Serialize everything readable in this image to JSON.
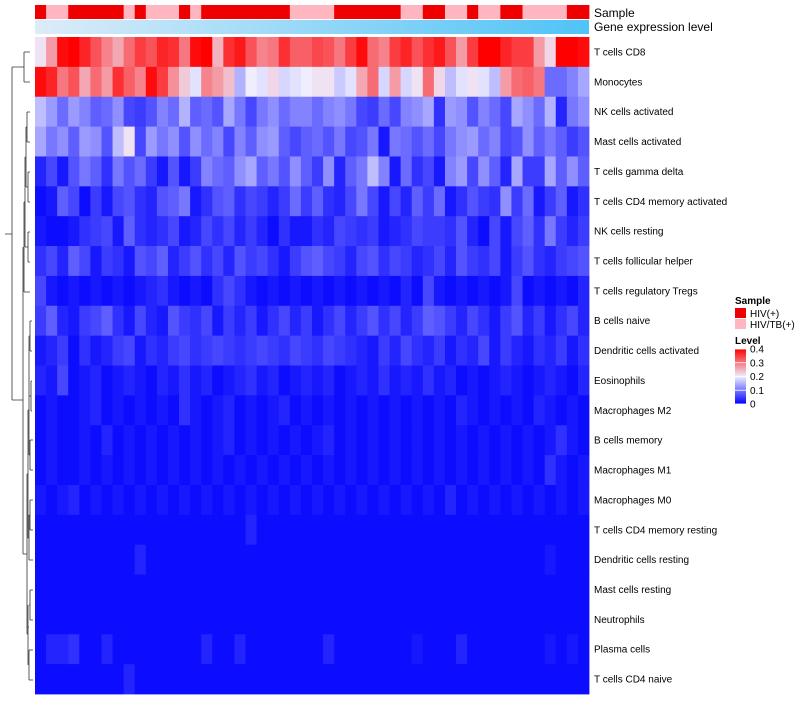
{
  "chart_data": {
    "type": "heatmap",
    "title": "",
    "annotation_tracks": [
      "Sample",
      "Gene expression level"
    ],
    "rows": [
      "T cells CD8",
      "Monocytes",
      "NK cells activated",
      "Mast cells activated",
      "T cells gamma delta",
      "T cells CD4 memory activated",
      "NK cells resting",
      "T cells follicular helper",
      "T cells regulatory  Tregs",
      "B cells naive",
      "Dendritic cells activated",
      "Eosinophils",
      "Macrophages M2",
      "B cells memory",
      "Macrophages M1",
      "Macrophages M0",
      "T cells CD4 memory resting",
      "Dendritic cells resting",
      "Mast cells resting",
      "Neutrophils",
      "Plasma cells",
      "T cells CD4 naive"
    ],
    "columns_count": 50,
    "sample_annotation": [
      "HIV(+)",
      "HIV/TB(+)",
      "HIV/TB(+)",
      "HIV(+)",
      "HIV(+)",
      "HIV(+)",
      "HIV(+)",
      "HIV(+)",
      "HIV/TB(+)",
      "HIV(+)",
      "HIV/TB(+)",
      "HIV/TB(+)",
      "HIV/TB(+)",
      "HIV(+)",
      "HIV/TB(+)",
      "HIV(+)",
      "HIV(+)",
      "HIV(+)",
      "HIV(+)",
      "HIV(+)",
      "HIV(+)",
      "HIV(+)",
      "HIV(+)",
      "HIV/TB(+)",
      "HIV/TB(+)",
      "HIV/TB(+)",
      "HIV/TB(+)",
      "HIV(+)",
      "HIV(+)",
      "HIV(+)",
      "HIV(+)",
      "HIV(+)",
      "HIV(+)",
      "HIV/TB(+)",
      "HIV/TB(+)",
      "HIV(+)",
      "HIV(+)",
      "HIV/TB(+)",
      "HIV/TB(+)",
      "HIV(+)",
      "HIV/TB(+)",
      "HIV/TB(+)",
      "HIV(+)",
      "HIV(+)",
      "HIV/TB(+)",
      "HIV/TB(+)",
      "HIV/TB(+)",
      "HIV/TB(+)",
      "HIV(+)",
      "HIV(+)"
    ],
    "legend": {
      "sample_title": "Sample",
      "sample_entries": [
        {
          "label": "HIV(+)",
          "color": "#ee0000"
        },
        {
          "label": "HIV/TB(+)",
          "color": "#ffb6c1"
        }
      ],
      "level_title": "Level",
      "level_ticks": [
        "0.4",
        "0.3",
        "0.2",
        "0.1",
        "0"
      ],
      "level_min": 0,
      "level_max": 0.4
    },
    "gradient": {
      "gene_expression_from": "#dcecf8",
      "gene_expression_to": "#4fc3f7",
      "level_low": "#0000ff",
      "level_mid": "#eeeeff",
      "level_high": "#ff0000"
    },
    "values": {
      "T cells CD8": [
        0.21,
        0.27,
        0.39,
        0.41,
        0.37,
        0.33,
        0.29,
        0.26,
        0.31,
        0.35,
        0.33,
        0.37,
        0.36,
        0.3,
        0.39,
        0.41,
        0.25,
        0.36,
        0.38,
        0.33,
        0.29,
        0.3,
        0.36,
        0.32,
        0.32,
        0.34,
        0.33,
        0.3,
        0.35,
        0.39,
        0.31,
        0.29,
        0.35,
        0.37,
        0.33,
        0.36,
        0.38,
        0.33,
        0.27,
        0.35,
        0.4,
        0.4,
        0.37,
        0.35,
        0.35,
        0.27,
        0.22,
        0.4,
        0.42,
        0.39
      ],
      "Monocytes": [
        0.39,
        0.37,
        0.3,
        0.33,
        0.26,
        0.31,
        0.27,
        0.36,
        0.32,
        0.29,
        0.39,
        0.35,
        0.28,
        0.23,
        0.19,
        0.29,
        0.27,
        0.24,
        0.15,
        0.2,
        0.19,
        0.22,
        0.18,
        0.19,
        0.2,
        0.21,
        0.21,
        0.17,
        0.19,
        0.26,
        0.31,
        0.18,
        0.27,
        0.18,
        0.21,
        0.31,
        0.22,
        0.16,
        0.19,
        0.21,
        0.19,
        0.16,
        0.27,
        0.31,
        0.32,
        0.3,
        0.09,
        0.09,
        0.11,
        0.14
      ],
      "NK cells activated": [
        0.16,
        0.13,
        0.09,
        0.13,
        0.11,
        0.08,
        0.09,
        0.12,
        0.06,
        0.05,
        0.07,
        0.11,
        0.09,
        0.15,
        0.08,
        0.09,
        0.07,
        0.14,
        0.1,
        0.06,
        0.1,
        0.12,
        0.09,
        0.11,
        0.11,
        0.09,
        0.11,
        0.12,
        0.1,
        0.06,
        0.05,
        0.09,
        0.06,
        0.11,
        0.12,
        0.14,
        0.04,
        0.13,
        0.12,
        0.07,
        0.11,
        0.09,
        0.06,
        0.14,
        0.12,
        0.09,
        0.15,
        0.03,
        0.1,
        0.12
      ],
      "Mast cells activated": [
        0.14,
        0.1,
        0.12,
        0.08,
        0.13,
        0.12,
        0.07,
        0.16,
        0.21,
        0.06,
        0.13,
        0.1,
        0.12,
        0.07,
        0.12,
        0.09,
        0.11,
        0.06,
        0.11,
        0.08,
        0.12,
        0.13,
        0.08,
        0.06,
        0.08,
        0.09,
        0.07,
        0.1,
        0.06,
        0.07,
        0.1,
        0.02,
        0.1,
        0.09,
        0.07,
        0.09,
        0.06,
        0.1,
        0.12,
        0.13,
        0.09,
        0.11,
        0.06,
        0.07,
        0.12,
        0.08,
        0.1,
        0.08,
        0.05,
        0.07
      ],
      "T cells gamma delta": [
        0.03,
        0.06,
        0.02,
        0.07,
        0.1,
        0.08,
        0.04,
        0.1,
        0.07,
        0.09,
        0.05,
        0.02,
        0.07,
        0.02,
        0.05,
        0.11,
        0.09,
        0.08,
        0.12,
        0.14,
        0.08,
        0.1,
        0.07,
        0.12,
        0.08,
        0.05,
        0.12,
        0.03,
        0.08,
        0.1,
        0.16,
        0.11,
        0.02,
        0.09,
        0.04,
        0.06,
        0.02,
        0.11,
        0.13,
        0.06,
        0.12,
        0.08,
        0.03,
        0.14,
        0.05,
        0.05,
        0.14,
        0.08,
        0.12,
        0.08
      ],
      "T cells CD4 memory activated": [
        0.01,
        0.02,
        0.08,
        0.06,
        0.01,
        0.05,
        0.02,
        0.06,
        0.07,
        0.04,
        0.03,
        0.07,
        0.08,
        0.1,
        0.02,
        0.04,
        0.07,
        0.08,
        0.04,
        0.06,
        0.05,
        0.03,
        0.05,
        0.09,
        0.05,
        0.08,
        0.04,
        0.03,
        0.06,
        0.1,
        0.06,
        0.02,
        0.06,
        0.03,
        0.08,
        0.05,
        0.09,
        0.02,
        0.04,
        0.07,
        0.05,
        0.04,
        0.12,
        0.05,
        0.09,
        0.02,
        0.05,
        0.08,
        0.02,
        0.04
      ],
      "NK cells resting": [
        0.02,
        0.01,
        0.01,
        0.02,
        0.04,
        0.05,
        0.06,
        0.02,
        0.08,
        0.04,
        0.03,
        0.04,
        0.06,
        0.02,
        0.03,
        0.06,
        0.04,
        0.06,
        0.03,
        0.05,
        0.03,
        0.01,
        0.04,
        0.02,
        0.02,
        0.04,
        0.03,
        0.06,
        0.05,
        0.04,
        0.05,
        0.02,
        0.03,
        0.04,
        0.06,
        0.05,
        0.05,
        0.04,
        0.07,
        0.03,
        0.01,
        0.06,
        0.02,
        0.06,
        0.08,
        0.04,
        0.1,
        0.05,
        0.03,
        0.05
      ],
      "T cells follicular helper": [
        0.04,
        0.06,
        0.03,
        0.08,
        0.06,
        0.02,
        0.05,
        0.04,
        0.02,
        0.07,
        0.06,
        0.08,
        0.03,
        0.05,
        0.07,
        0.04,
        0.06,
        0.03,
        0.07,
        0.05,
        0.06,
        0.04,
        0.02,
        0.05,
        0.07,
        0.08,
        0.06,
        0.05,
        0.03,
        0.06,
        0.07,
        0.04,
        0.06,
        0.05,
        0.03,
        0.04,
        0.06,
        0.03,
        0.07,
        0.05,
        0.04,
        0.06,
        0.02,
        0.05,
        0.07,
        0.04,
        0.03,
        0.05,
        0.06,
        0.07
      ],
      "T cells regulatory  Tregs": [
        0.06,
        0.02,
        0.01,
        0.02,
        0.01,
        0.02,
        0.01,
        0.02,
        0.01,
        0.02,
        0.03,
        0.04,
        0.02,
        0.01,
        0.02,
        0.01,
        0.04,
        0.06,
        0.04,
        0.02,
        0.01,
        0.02,
        0.01,
        0.02,
        0.01,
        0.02,
        0.01,
        0.02,
        0.01,
        0.02,
        0.01,
        0.02,
        0.01,
        0.03,
        0.01,
        0.06,
        0.02,
        0.01,
        0.02,
        0.01,
        0.02,
        0.01,
        0.02,
        0.06,
        0.01,
        0.02,
        0.01,
        0.02,
        0.01,
        0.03
      ],
      "B cells naive": [
        0.05,
        0.08,
        0.03,
        0.02,
        0.05,
        0.06,
        0.08,
        0.04,
        0.02,
        0.06,
        0.03,
        0.02,
        0.07,
        0.05,
        0.04,
        0.06,
        0.02,
        0.05,
        0.03,
        0.05,
        0.02,
        0.04,
        0.06,
        0.03,
        0.05,
        0.02,
        0.04,
        0.06,
        0.03,
        0.05,
        0.07,
        0.04,
        0.06,
        0.03,
        0.05,
        0.08,
        0.07,
        0.05,
        0.03,
        0.06,
        0.04,
        0.02,
        0.05,
        0.07,
        0.03,
        0.05,
        0.02,
        0.04,
        0.06,
        0.03
      ],
      "Dendritic cells activated": [
        0.02,
        0.03,
        0.05,
        0.01,
        0.04,
        0.02,
        0.03,
        0.05,
        0.06,
        0.02,
        0.04,
        0.03,
        0.05,
        0.06,
        0.04,
        0.05,
        0.06,
        0.05,
        0.04,
        0.05,
        0.06,
        0.05,
        0.04,
        0.06,
        0.05,
        0.04,
        0.06,
        0.05,
        0.04,
        0.03,
        0.02,
        0.05,
        0.03,
        0.06,
        0.04,
        0.03,
        0.05,
        0.02,
        0.04,
        0.03,
        0.06,
        0.02,
        0.05,
        0.03,
        0.02,
        0.04,
        0.03,
        0.05,
        0.02,
        0.04
      ],
      "Eosinophils": [
        0.03,
        0.02,
        0.06,
        0.01,
        0.02,
        0.03,
        0.01,
        0.02,
        0.03,
        0.02,
        0.01,
        0.03,
        0.02,
        0.04,
        0.02,
        0.03,
        0.01,
        0.02,
        0.03,
        0.04,
        0.02,
        0.03,
        0.01,
        0.02,
        0.03,
        0.02,
        0.03,
        0.01,
        0.02,
        0.03,
        0.02,
        0.04,
        0.02,
        0.03,
        0.02,
        0.04,
        0.02,
        0.03,
        0.01,
        0.02,
        0.01,
        0.02,
        0.03,
        0.02,
        0.01,
        0.02,
        0.03,
        0.02,
        0.01,
        0.03
      ],
      "Macrophages M2": [
        0.01,
        0.02,
        0.01,
        0.01,
        0.02,
        0.03,
        0.01,
        0.02,
        0.01,
        0.02,
        0.01,
        0.02,
        0.01,
        0.04,
        0.02,
        0.01,
        0.02,
        0.03,
        0.01,
        0.02,
        0.01,
        0.02,
        0.03,
        0.01,
        0.02,
        0.01,
        0.02,
        0.01,
        0.02,
        0.01,
        0.02,
        0.01,
        0.02,
        0.01,
        0.02,
        0.01,
        0.02,
        0.01,
        0.03,
        0.02,
        0.01,
        0.02,
        0.01,
        0.02,
        0.01,
        0.03,
        0.02,
        0.01,
        0.02,
        0.01
      ],
      "B cells memory": [
        0.01,
        0.02,
        0.01,
        0.01,
        0.02,
        0.01,
        0.03,
        0.01,
        0.02,
        0.01,
        0.02,
        0.01,
        0.02,
        0.01,
        0.02,
        0.01,
        0.02,
        0.03,
        0.01,
        0.02,
        0.01,
        0.02,
        0.01,
        0.02,
        0.01,
        0.02,
        0.03,
        0.01,
        0.02,
        0.01,
        0.02,
        0.01,
        0.02,
        0.01,
        0.02,
        0.01,
        0.02,
        0.01,
        0.02,
        0.01,
        0.02,
        0.01,
        0.02,
        0.01,
        0.02,
        0.01,
        0.02,
        0.04,
        0.02,
        0.01
      ],
      "Macrophages M1": [
        0.01,
        0.02,
        0.01,
        0.01,
        0.02,
        0.01,
        0.02,
        0.01,
        0.02,
        0.01,
        0.02,
        0.01,
        0.02,
        0.01,
        0.02,
        0.01,
        0.02,
        0.01,
        0.02,
        0.01,
        0.02,
        0.01,
        0.02,
        0.01,
        0.02,
        0.01,
        0.02,
        0.01,
        0.02,
        0.01,
        0.02,
        0.01,
        0.02,
        0.01,
        0.02,
        0.01,
        0.02,
        0.01,
        0.02,
        0.01,
        0.02,
        0.01,
        0.02,
        0.01,
        0.02,
        0.01,
        0.04,
        0.02,
        0.01,
        0.02
      ],
      "Macrophages M0": [
        0.02,
        0.01,
        0.02,
        0.03,
        0.01,
        0.02,
        0.01,
        0.02,
        0.01,
        0.02,
        0.01,
        0.02,
        0.01,
        0.02,
        0.01,
        0.02,
        0.01,
        0.02,
        0.01,
        0.02,
        0.01,
        0.02,
        0.01,
        0.02,
        0.01,
        0.02,
        0.01,
        0.02,
        0.01,
        0.02,
        0.01,
        0.02,
        0.01,
        0.02,
        0.01,
        0.02,
        0.01,
        0.03,
        0.01,
        0.02,
        0.01,
        0.02,
        0.01,
        0.02,
        0.01,
        0.02,
        0.01,
        0.02,
        0.01,
        0.02
      ],
      "T cells CD4 memory resting": [
        0.01,
        0.01,
        0.01,
        0.01,
        0.01,
        0.01,
        0.01,
        0.01,
        0.01,
        0.01,
        0.01,
        0.01,
        0.01,
        0.01,
        0.01,
        0.01,
        0.01,
        0.01,
        0.01,
        0.03,
        0.01,
        0.01,
        0.01,
        0.01,
        0.01,
        0.01,
        0.01,
        0.01,
        0.01,
        0.01,
        0.01,
        0.01,
        0.01,
        0.01,
        0.01,
        0.01,
        0.01,
        0.01,
        0.01,
        0.01,
        0.01,
        0.01,
        0.01,
        0.01,
        0.01,
        0.01,
        0.01,
        0.01,
        0.01,
        0.01
      ],
      "Dendritic cells resting": [
        0.01,
        0.01,
        0.01,
        0.01,
        0.01,
        0.01,
        0.01,
        0.01,
        0.01,
        0.03,
        0.01,
        0.01,
        0.01,
        0.01,
        0.01,
        0.01,
        0.01,
        0.01,
        0.01,
        0.01,
        0.01,
        0.01,
        0.01,
        0.01,
        0.01,
        0.01,
        0.01,
        0.01,
        0.01,
        0.01,
        0.01,
        0.01,
        0.01,
        0.01,
        0.01,
        0.01,
        0.01,
        0.01,
        0.01,
        0.01,
        0.01,
        0.01,
        0.01,
        0.01,
        0.01,
        0.01,
        0.02,
        0.01,
        0.01,
        0.01
      ],
      "Mast cells resting": [
        0.01,
        0.01,
        0.01,
        0.01,
        0.01,
        0.01,
        0.01,
        0.01,
        0.01,
        0.01,
        0.01,
        0.01,
        0.01,
        0.01,
        0.01,
        0.01,
        0.01,
        0.01,
        0.01,
        0.01,
        0.01,
        0.01,
        0.01,
        0.01,
        0.01,
        0.01,
        0.01,
        0.01,
        0.01,
        0.01,
        0.01,
        0.01,
        0.01,
        0.01,
        0.01,
        0.01,
        0.01,
        0.01,
        0.01,
        0.01,
        0.01,
        0.01,
        0.01,
        0.01,
        0.01,
        0.01,
        0.01,
        0.01,
        0.01,
        0.01
      ],
      "Neutrophils": [
        0.01,
        0.01,
        0.01,
        0.01,
        0.01,
        0.01,
        0.01,
        0.01,
        0.01,
        0.01,
        0.01,
        0.01,
        0.01,
        0.01,
        0.01,
        0.01,
        0.01,
        0.01,
        0.01,
        0.01,
        0.01,
        0.01,
        0.01,
        0.01,
        0.01,
        0.01,
        0.01,
        0.01,
        0.01,
        0.01,
        0.01,
        0.01,
        0.01,
        0.01,
        0.01,
        0.01,
        0.01,
        0.01,
        0.01,
        0.01,
        0.01,
        0.01,
        0.01,
        0.01,
        0.01,
        0.01,
        0.01,
        0.01,
        0.01,
        0.01
      ],
      "Plasma cells": [
        0.01,
        0.03,
        0.03,
        0.04,
        0.01,
        0.01,
        0.03,
        0.01,
        0.01,
        0.01,
        0.01,
        0.01,
        0.01,
        0.01,
        0.01,
        0.03,
        0.01,
        0.01,
        0.03,
        0.01,
        0.01,
        0.01,
        0.01,
        0.01,
        0.01,
        0.01,
        0.03,
        0.01,
        0.01,
        0.01,
        0.01,
        0.01,
        0.01,
        0.01,
        0.02,
        0.01,
        0.01,
        0.01,
        0.03,
        0.01,
        0.01,
        0.01,
        0.01,
        0.01,
        0.01,
        0.01,
        0.02,
        0.01,
        0.02,
        0.01
      ],
      "T cells CD4 naive": [
        0.01,
        0.01,
        0.01,
        0.01,
        0.01,
        0.01,
        0.01,
        0.01,
        0.03,
        0.01,
        0.01,
        0.01,
        0.01,
        0.01,
        0.01,
        0.01,
        0.01,
        0.01,
        0.01,
        0.01,
        0.01,
        0.01,
        0.01,
        0.01,
        0.01,
        0.01,
        0.01,
        0.01,
        0.01,
        0.01,
        0.01,
        0.01,
        0.01,
        0.01,
        0.01,
        0.01,
        0.01,
        0.01,
        0.01,
        0.01,
        0.01,
        0.01,
        0.01,
        0.01,
        0.01,
        0.01,
        0.01,
        0.01,
        0.01,
        0.01
      ]
    }
  }
}
